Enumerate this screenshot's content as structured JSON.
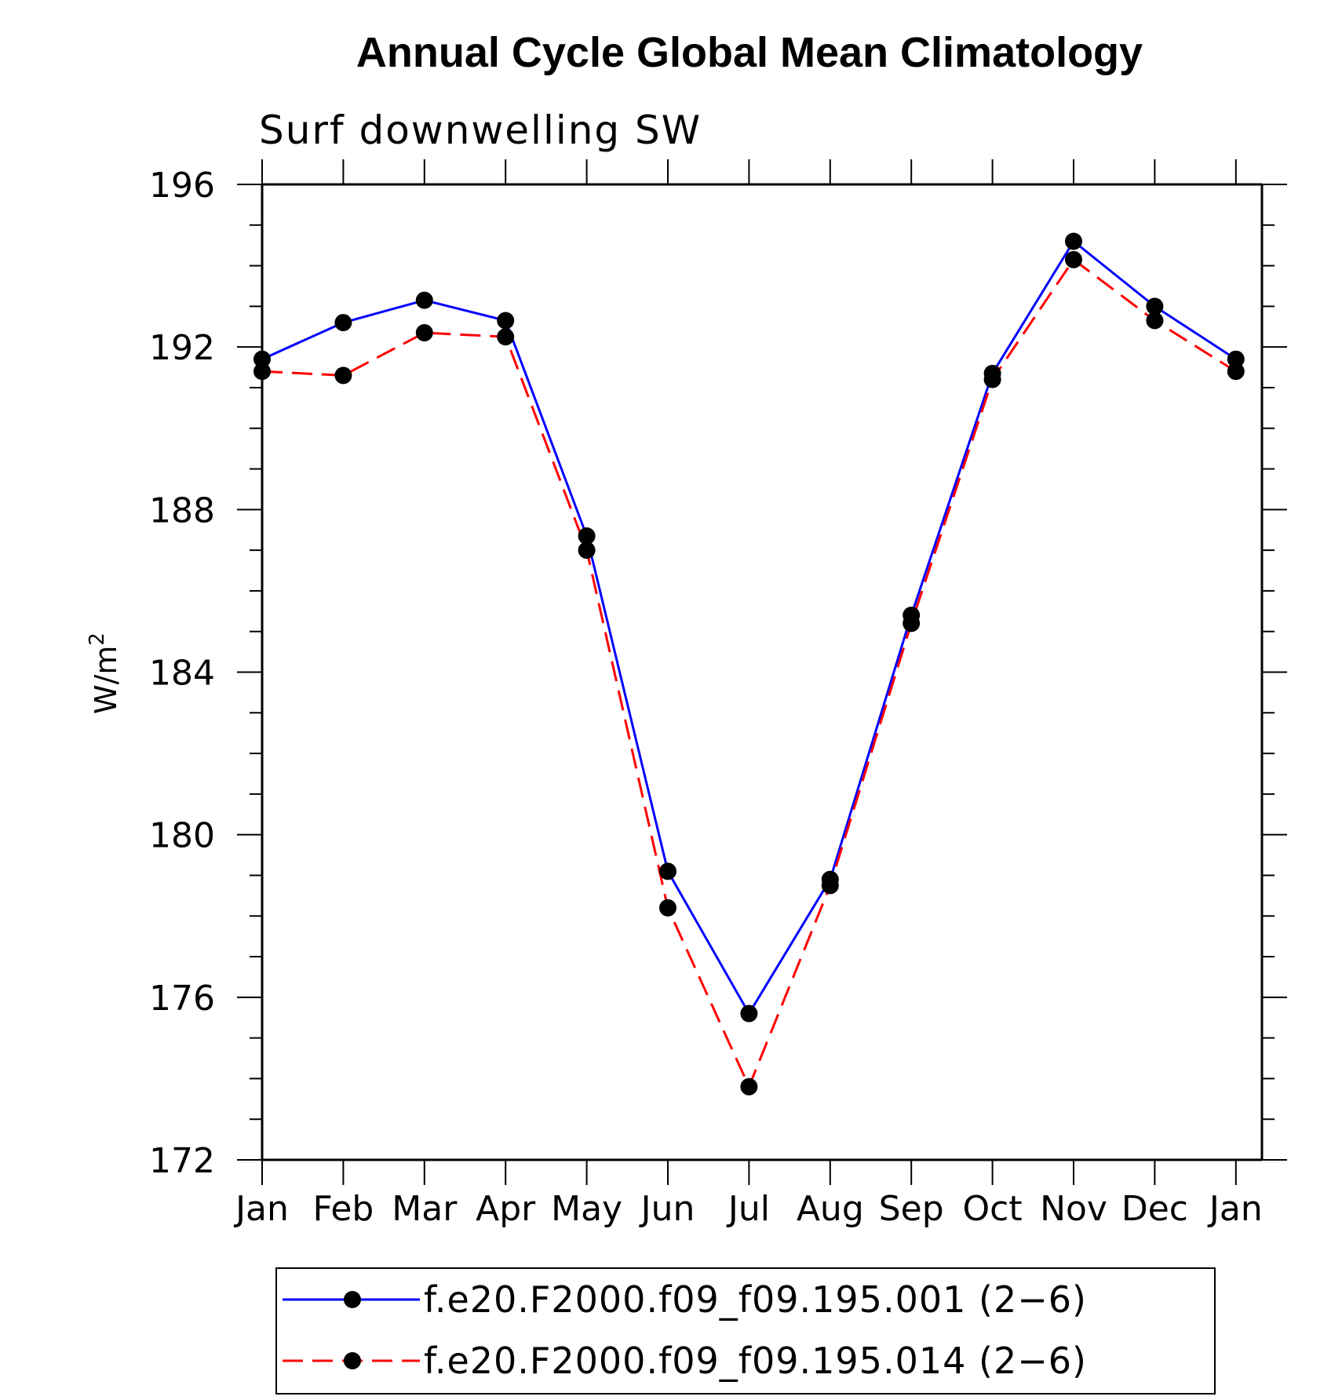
{
  "chart_data": {
    "type": "line",
    "title": "Annual Cycle Global Mean Climatology",
    "subtitle": "Surf downwelling SW",
    "xlabel": "",
    "ylabel": "W/m",
    "ylabel_superscript": "2",
    "ylim": [
      172,
      196
    ],
    "yticks": [
      172,
      176,
      180,
      184,
      188,
      192,
      196
    ],
    "categories": [
      "Jan",
      "Feb",
      "Mar",
      "Apr",
      "May",
      "Jun",
      "Jul",
      "Aug",
      "Sep",
      "Oct",
      "Nov",
      "Dec",
      "Jan"
    ],
    "grid": false,
    "legend_position": "bottom",
    "series": [
      {
        "name": "f.e20.F2000.f09_f09.195.001 (2−6)",
        "color": "#0000ff",
        "line_style": "solid",
        "marker": "filled-circle",
        "marker_color": "#000000",
        "values": [
          191.7,
          192.6,
          193.15,
          192.65,
          187.35,
          179.1,
          175.6,
          178.9,
          185.4,
          191.35,
          194.6,
          193.0,
          191.7
        ]
      },
      {
        "name": "f.e20.F2000.f09_f09.195.014 (2−6)",
        "color": "#ff0000",
        "line_style": "dashed",
        "marker": "filled-circle",
        "marker_color": "#000000",
        "values": [
          191.4,
          191.3,
          192.35,
          192.25,
          187.0,
          178.2,
          173.8,
          178.75,
          185.2,
          191.2,
          194.15,
          192.65,
          191.4
        ]
      }
    ]
  }
}
